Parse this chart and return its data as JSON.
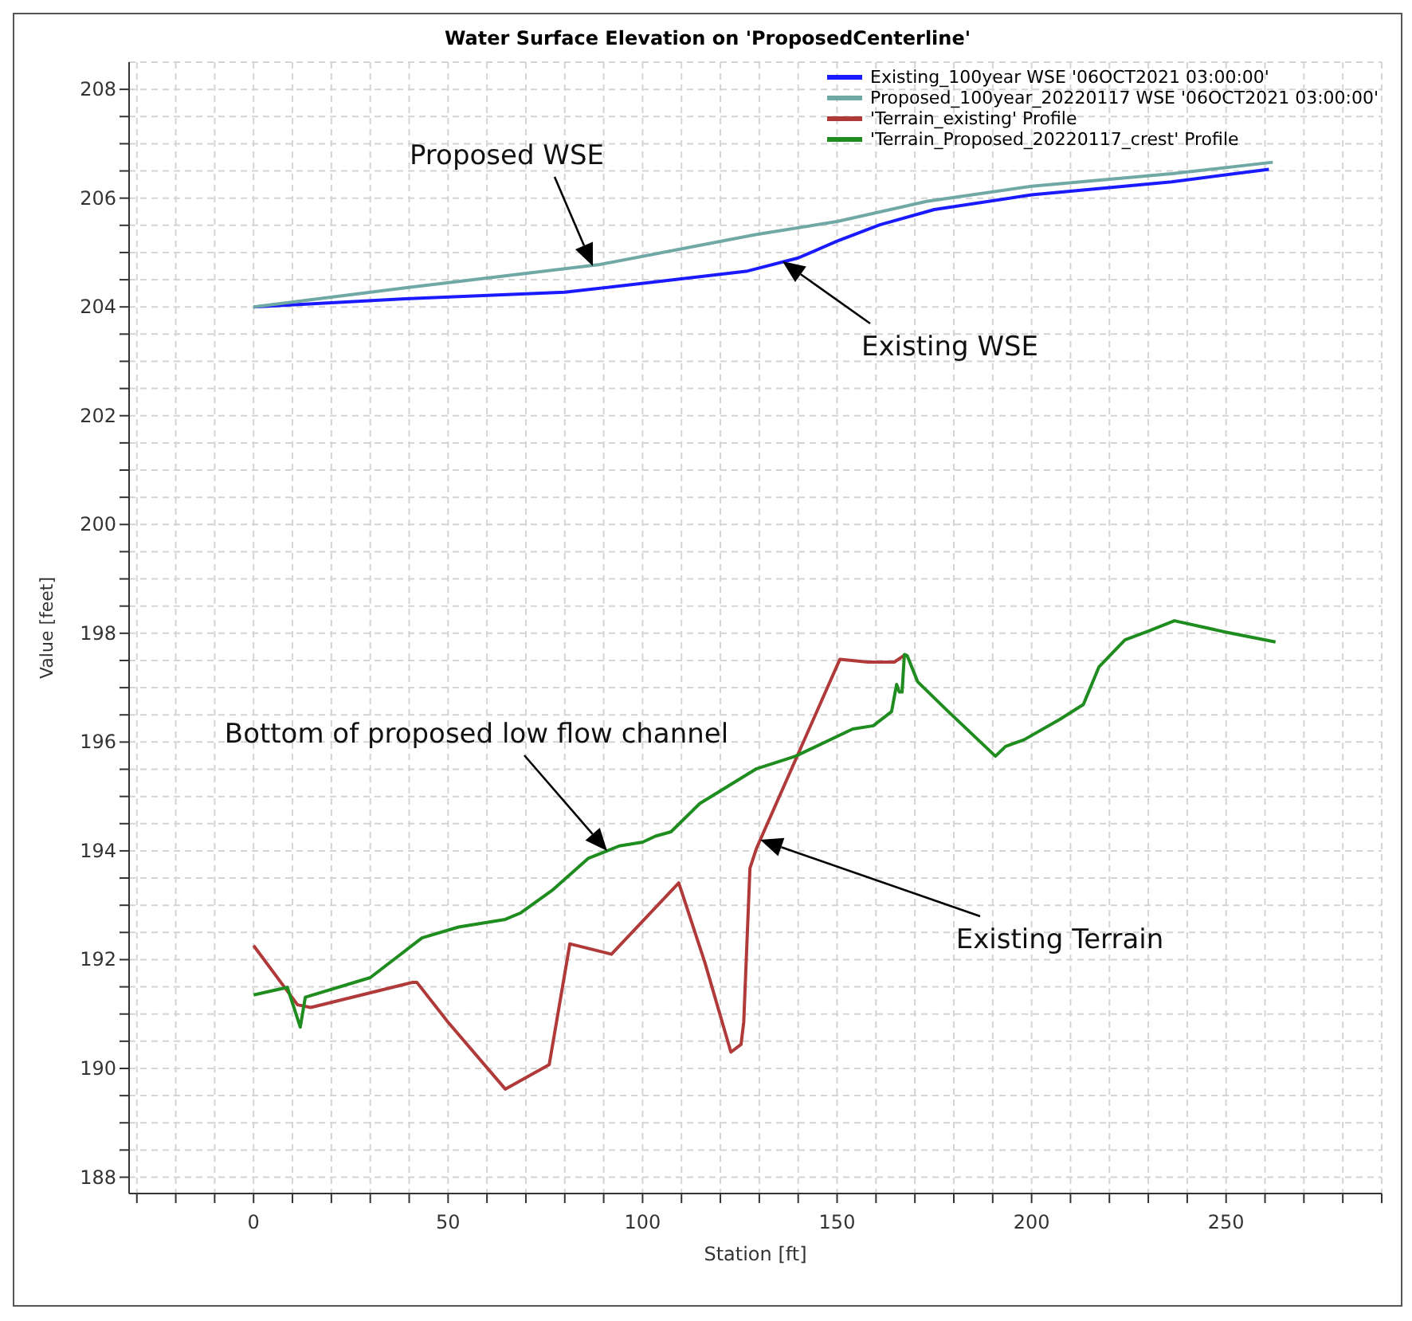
{
  "chart_data": {
    "type": "line",
    "title": "Water Surface Elevation on 'ProposedCenterline'",
    "xlabel": "Station [ft]",
    "ylabel": "Value [feet]",
    "xlim": [
      -32,
      290
    ],
    "xticks": [
      {
        "value": -30,
        "label": null
      },
      {
        "value": -20,
        "label": null
      },
      {
        "value": -10,
        "label": null
      },
      0,
      {
        "value": 10,
        "label": null
      },
      {
        "value": 20,
        "label": null
      },
      {
        "value": 30,
        "label": null
      },
      {
        "value": 40,
        "label": null
      },
      50,
      {
        "value": 60,
        "label": null
      },
      {
        "value": 70,
        "label": null
      },
      {
        "value": 80,
        "label": null
      },
      {
        "value": 90,
        "label": null
      },
      100,
      {
        "value": 110,
        "label": null
      },
      {
        "value": 120,
        "label": null
      },
      {
        "value": 130,
        "label": null
      },
      {
        "value": 140,
        "label": null
      },
      150,
      {
        "value": 160,
        "label": null
      },
      {
        "value": 170,
        "label": null
      },
      {
        "value": 180,
        "label": null
      },
      {
        "value": 190,
        "label": null
      },
      200,
      {
        "value": 210,
        "label": null
      },
      {
        "value": 220,
        "label": null
      },
      {
        "value": 230,
        "label": null
      },
      {
        "value": 240,
        "label": null
      },
      250,
      {
        "value": 260,
        "label": null
      },
      {
        "value": 270,
        "label": null
      },
      {
        "value": 280,
        "label": null
      },
      {
        "value": 290,
        "label": null
      }
    ],
    "ylim": [
      187.7,
      208.5
    ],
    "yticks": [
      188,
      {
        "value": 188.5,
        "label": null
      },
      {
        "value": 189,
        "label": null
      },
      {
        "value": 189.5,
        "label": null
      },
      190,
      {
        "value": 190.5,
        "label": null
      },
      {
        "value": 191,
        "label": null
      },
      {
        "value": 191.5,
        "label": null
      },
      192,
      {
        "value": 192.5,
        "label": null
      },
      {
        "value": 193,
        "label": null
      },
      {
        "value": 193.5,
        "label": null
      },
      194,
      {
        "value": 194.5,
        "label": null
      },
      {
        "value": 195,
        "label": null
      },
      {
        "value": 195.5,
        "label": null
      },
      196,
      {
        "value": 196.5,
        "label": null
      },
      {
        "value": 197,
        "label": null
      },
      {
        "value": 197.5,
        "label": null
      },
      198,
      {
        "value": 198.5,
        "label": null
      },
      {
        "value": 199,
        "label": null
      },
      {
        "value": 199.5,
        "label": null
      },
      200,
      {
        "value": 200.5,
        "label": null
      },
      {
        "value": 201,
        "label": null
      },
      {
        "value": 201.5,
        "label": null
      },
      202,
      {
        "value": 202.5,
        "label": null
      },
      {
        "value": 203,
        "label": null
      },
      {
        "value": 203.5,
        "label": null
      },
      204,
      {
        "value": 204.5,
        "label": null
      },
      {
        "value": 205,
        "label": null
      },
      {
        "value": 205.5,
        "label": null
      },
      206,
      {
        "value": 206.5,
        "label": null
      },
      {
        "value": 207,
        "label": null
      },
      {
        "value": 207.5,
        "label": null
      },
      208
    ],
    "grid": true,
    "legend": "top right",
    "series": [
      {
        "name": "Existing_100year WSE '06OCT2021 03:00:00'",
        "color": "#1a1aff",
        "x": [
          0,
          39,
          80,
          102,
          127,
          140,
          150,
          161,
          175,
          200,
          236,
          261
        ],
        "values": [
          204.0,
          204.15,
          204.27,
          204.45,
          204.66,
          204.9,
          205.21,
          205.51,
          205.79,
          206.06,
          206.3,
          206.53
        ]
      },
      {
        "name": "Proposed_100year_20220117 WSE '06OCT2021 03:00:00'",
        "color": "#6fa8a4",
        "x": [
          0,
          39,
          89,
          129,
          150,
          173,
          200,
          236,
          262
        ],
        "values": [
          204.0,
          204.35,
          204.78,
          205.33,
          205.57,
          205.94,
          206.22,
          206.45,
          206.66
        ]
      },
      {
        "name": "'Terrain_existing' Profile",
        "color": "#b03a3a",
        "x": [
          0,
          11.3,
          14.7,
          40.7,
          42,
          50,
          64.7,
          76,
          81.3,
          92,
          109.3,
          116,
          122.7,
          125.3,
          126,
          127.6,
          129.3,
          150.7,
          158,
          164.7,
          167.6
        ],
        "values": [
          192.26,
          191.17,
          191.12,
          191.58,
          191.58,
          190.85,
          189.62,
          190.07,
          192.29,
          192.1,
          193.41,
          191.95,
          190.3,
          190.44,
          190.85,
          193.68,
          194.05,
          197.52,
          197.47,
          197.47,
          197.61
        ]
      },
      {
        "name": "'Terrain_Proposed_20220117_crest' Profile",
        "color": "#1e8c1e",
        "x": [
          0,
          8.7,
          12,
          13.3,
          30,
          43.3,
          52.7,
          64.7,
          68.7,
          76.7,
          86,
          94,
          100,
          103.3,
          107.3,
          114.7,
          129.3,
          139.3,
          154,
          159.3,
          164,
          165.3,
          166,
          166.7,
          167.3,
          168,
          170.7,
          178,
          190.7,
          193.3,
          198,
          207.3,
          213.3,
          217.3,
          224,
          230,
          236.7,
          250,
          262.7
        ],
        "values": [
          191.35,
          191.49,
          190.76,
          191.31,
          191.67,
          192.4,
          192.6,
          192.74,
          192.86,
          193.27,
          193.86,
          194.09,
          194.16,
          194.27,
          194.35,
          194.87,
          195.51,
          195.74,
          196.24,
          196.3,
          196.56,
          197.06,
          196.92,
          196.92,
          197.61,
          197.59,
          197.11,
          196.6,
          195.74,
          195.92,
          196.04,
          196.42,
          196.69,
          197.38,
          197.88,
          198.04,
          198.23,
          198.02,
          197.84
        ]
      }
    ],
    "annotations": [
      "Proposed WSE",
      "Existing WSE",
      "Bottom of proposed low flow channel",
      "Existing Terrain"
    ]
  }
}
